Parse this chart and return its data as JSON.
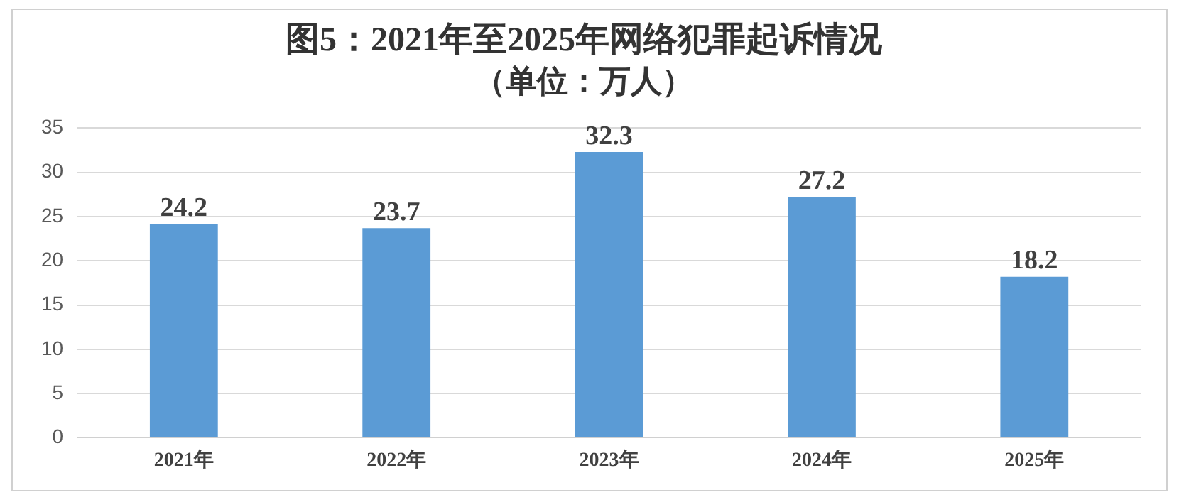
{
  "chart_data": {
    "type": "bar",
    "title": "图5：2021年至2025年网络犯罪起诉情况",
    "subtitle": "（单位：万人）",
    "categories": [
      "2021年",
      "2022年",
      "2023年",
      "2024年",
      "2025年"
    ],
    "values": [
      24.2,
      23.7,
      32.3,
      27.2,
      18.2
    ],
    "color": "#5b9bd5",
    "ylim": [
      0,
      35
    ],
    "yticks": [
      0,
      5,
      10,
      15,
      20,
      25,
      30,
      35
    ],
    "grid": "y",
    "data_labels": true,
    "legend": false
  }
}
